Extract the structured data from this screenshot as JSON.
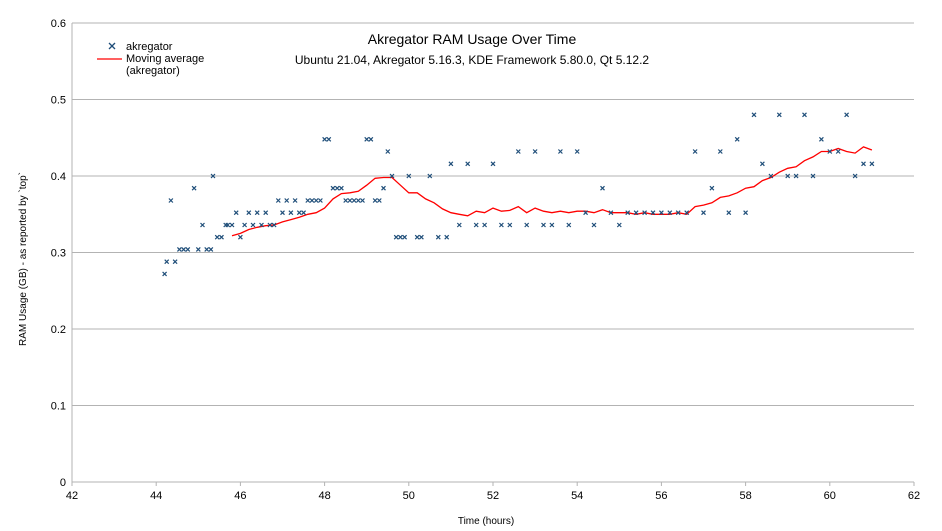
{
  "chart_data": {
    "type": "scatter",
    "title": "Akregator RAM Usage Over Time",
    "subtitle": "Ubuntu 21.04, Akregator 5.16.3, KDE Framework 5.80.0, Qt 5.12.2",
    "xlabel": "Time (hours)",
    "ylabel": "RAM Usage (GB) - as reported by `top`",
    "xlim": [
      42,
      62
    ],
    "ylim": [
      0,
      0.6
    ],
    "x_ticks": [
      "42",
      "44",
      "46",
      "48",
      "50",
      "52",
      "54",
      "56",
      "58",
      "60",
      "62"
    ],
    "y_ticks": [
      "0",
      "0.1",
      "0.2",
      "0.3",
      "0.4",
      "0.5",
      "0.6"
    ],
    "grid": "horizontal",
    "legend_position": "top-left",
    "colors": {
      "scatter": "#1f4e79",
      "moving_average": "#ff0000",
      "grid": "#b3b3b3"
    },
    "series": [
      {
        "name": "akregator",
        "type": "scatter",
        "x": [
          44.2,
          44.25,
          44.35,
          44.45,
          44.55,
          44.65,
          44.75,
          44.9,
          45.0,
          45.1,
          45.2,
          45.3,
          45.35,
          45.45,
          45.55,
          45.65,
          45.7,
          45.8,
          45.9,
          46.0,
          46.1,
          46.2,
          46.3,
          46.4,
          46.5,
          46.6,
          46.7,
          46.8,
          46.9,
          47.0,
          47.1,
          47.2,
          47.3,
          47.4,
          47.5,
          47.6,
          47.7,
          47.8,
          47.9,
          48.0,
          48.1,
          48.2,
          48.3,
          48.4,
          48.5,
          48.6,
          48.7,
          48.8,
          48.9,
          49.0,
          49.1,
          49.2,
          49.3,
          49.4,
          49.5,
          49.6,
          49.7,
          49.8,
          49.9,
          50.0,
          50.2,
          50.3,
          50.5,
          50.7,
          50.9,
          51.0,
          51.2,
          51.4,
          51.6,
          51.8,
          52.0,
          52.2,
          52.4,
          52.6,
          52.8,
          53.0,
          53.2,
          53.4,
          53.6,
          53.8,
          54.0,
          54.2,
          54.4,
          54.6,
          54.8,
          55.0,
          55.2,
          55.4,
          55.6,
          55.8,
          56.0,
          56.2,
          56.4,
          56.6,
          56.8,
          57.0,
          57.2,
          57.4,
          57.6,
          57.8,
          58.0,
          58.2,
          58.4,
          58.6,
          58.8,
          59.0,
          59.2,
          59.4,
          59.6,
          59.8,
          60.0,
          60.2,
          60.4,
          60.6,
          60.8,
          61.0
        ],
        "values": [
          0.272,
          0.288,
          0.368,
          0.288,
          0.304,
          0.304,
          0.304,
          0.384,
          0.304,
          0.336,
          0.304,
          0.304,
          0.4,
          0.32,
          0.32,
          0.336,
          0.336,
          0.336,
          0.352,
          0.32,
          0.336,
          0.352,
          0.336,
          0.352,
          0.336,
          0.352,
          0.336,
          0.336,
          0.368,
          0.352,
          0.368,
          0.352,
          0.368,
          0.352,
          0.352,
          0.368,
          0.368,
          0.368,
          0.368,
          0.448,
          0.448,
          0.384,
          0.384,
          0.384,
          0.368,
          0.368,
          0.368,
          0.368,
          0.368,
          0.448,
          0.448,
          0.368,
          0.368,
          0.384,
          0.432,
          0.4,
          0.32,
          0.32,
          0.32,
          0.4,
          0.32,
          0.32,
          0.4,
          0.32,
          0.32,
          0.416,
          0.336,
          0.416,
          0.336,
          0.336,
          0.416,
          0.336,
          0.336,
          0.432,
          0.336,
          0.432,
          0.336,
          0.336,
          0.432,
          0.336,
          0.432,
          0.352,
          0.336,
          0.384,
          0.352,
          0.336,
          0.352,
          0.352,
          0.352,
          0.352,
          0.352,
          0.352,
          0.352,
          0.352,
          0.432,
          0.352,
          0.384,
          0.432,
          0.352,
          0.448,
          0.352,
          0.48,
          0.416,
          0.4,
          0.48,
          0.4,
          0.4,
          0.48,
          0.4,
          0.448,
          0.432,
          0.432,
          0.48,
          0.4,
          0.416,
          0.416
        ]
      },
      {
        "name": "Moving average (akregator)",
        "type": "line",
        "x": [
          45.8,
          46.0,
          46.2,
          46.4,
          46.6,
          46.8,
          47.0,
          47.2,
          47.4,
          47.6,
          47.8,
          48.0,
          48.2,
          48.4,
          48.6,
          48.8,
          49.0,
          49.2,
          49.4,
          49.6,
          49.8,
          50.0,
          50.2,
          50.4,
          50.6,
          50.8,
          51.0,
          51.2,
          51.4,
          51.6,
          51.8,
          52.0,
          52.2,
          52.4,
          52.6,
          52.8,
          53.0,
          53.2,
          53.4,
          53.6,
          53.8,
          54.0,
          54.2,
          54.4,
          54.6,
          54.8,
          55.0,
          55.2,
          55.4,
          55.6,
          55.8,
          56.0,
          56.2,
          56.4,
          56.6,
          56.8,
          57.0,
          57.2,
          57.4,
          57.6,
          57.8,
          58.0,
          58.2,
          58.4,
          58.6,
          58.8,
          59.0,
          59.2,
          59.4,
          59.6,
          59.8,
          60.0,
          60.2,
          60.4,
          60.6,
          60.8,
          61.0
        ],
        "values": [
          0.322,
          0.325,
          0.33,
          0.333,
          0.335,
          0.336,
          0.34,
          0.343,
          0.346,
          0.35,
          0.352,
          0.358,
          0.37,
          0.377,
          0.378,
          0.38,
          0.388,
          0.397,
          0.398,
          0.398,
          0.388,
          0.378,
          0.378,
          0.37,
          0.365,
          0.357,
          0.352,
          0.35,
          0.348,
          0.354,
          0.352,
          0.358,
          0.354,
          0.355,
          0.36,
          0.352,
          0.358,
          0.354,
          0.352,
          0.354,
          0.352,
          0.354,
          0.354,
          0.352,
          0.356,
          0.352,
          0.352,
          0.352,
          0.35,
          0.352,
          0.35,
          0.35,
          0.35,
          0.352,
          0.35,
          0.36,
          0.362,
          0.365,
          0.372,
          0.374,
          0.378,
          0.384,
          0.386,
          0.394,
          0.398,
          0.405,
          0.41,
          0.412,
          0.42,
          0.425,
          0.432,
          0.432,
          0.436,
          0.432,
          0.43,
          0.438,
          0.434
        ]
      }
    ]
  }
}
